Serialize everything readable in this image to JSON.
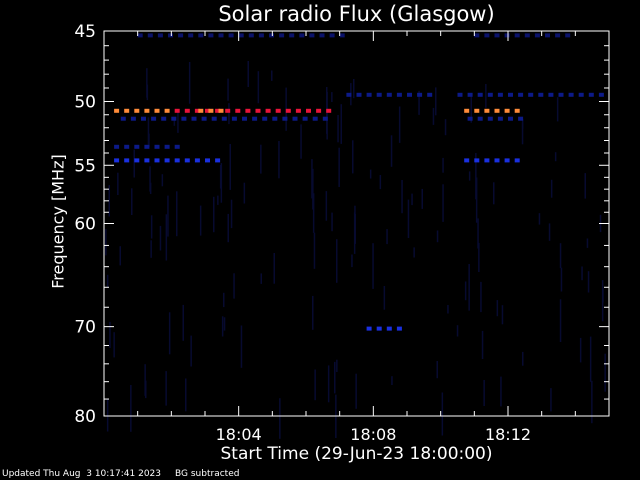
{
  "chart_data": {
    "type": "heatmap",
    "title": "Solar radio Flux (Glasgow)",
    "xlabel": "Start Time (29-Jun-23 18:00:00)",
    "ylabel": "Frequency [MHz]",
    "xlim_minutes": [
      0,
      15
    ],
    "ylim": [
      45,
      80
    ],
    "x_ticks": [
      {
        "minute": 4,
        "label": "18:04"
      },
      {
        "minute": 8,
        "label": "18:08"
      },
      {
        "minute": 12,
        "label": "18:12"
      }
    ],
    "y_ticks": [
      {
        "value": 45,
        "label": "45"
      },
      {
        "value": 50,
        "label": "50"
      },
      {
        "value": 55,
        "label": "55"
      },
      {
        "value": 60,
        "label": "60"
      },
      {
        "value": 70,
        "label": "70"
      },
      {
        "value": 80,
        "label": "80"
      }
    ],
    "bands": [
      {
        "freq": 50.7,
        "color": "#ff8c3a",
        "segments": [
          [
            0.3,
            2.1
          ]
        ]
      },
      {
        "freq": 50.7,
        "color": "#e8143a",
        "segments": [
          [
            2.1,
            6.7
          ]
        ]
      },
      {
        "freq": 50.7,
        "color": "#ff8c3a",
        "segments": [
          [
            2.8,
            3.4
          ]
        ]
      },
      {
        "freq": 50.7,
        "color": "#ff8c3a",
        "segments": [
          [
            10.7,
            12.4
          ]
        ]
      },
      {
        "freq": 54.6,
        "color": "#1a30e0",
        "segments": [
          [
            0.3,
            3.4
          ],
          [
            10.7,
            12.4
          ]
        ]
      },
      {
        "freq": 53.5,
        "color": "#0c1a88",
        "segments": [
          [
            0.3,
            2.4
          ]
        ]
      },
      {
        "freq": 51.3,
        "color": "#0c1a88",
        "segments": [
          [
            0.5,
            6.6
          ],
          [
            10.8,
            12.5
          ]
        ]
      },
      {
        "freq": 49.5,
        "color": "#0c1a88",
        "segments": [
          [
            7.2,
            9.8
          ],
          [
            10.5,
            15
          ]
        ]
      },
      {
        "freq": 45.3,
        "color": "#0a126a",
        "segments": [
          [
            1.0,
            7.0
          ],
          [
            11.0,
            14.0
          ]
        ]
      },
      {
        "freq": 70.2,
        "color": "#1a30e0",
        "segments": [
          [
            7.8,
            9.0
          ]
        ]
      }
    ],
    "noise_color": "#070a30"
  },
  "footer": {
    "updated": "Updated Thu Aug  3 10:17:41 2023",
    "note": "BG subtracted"
  }
}
